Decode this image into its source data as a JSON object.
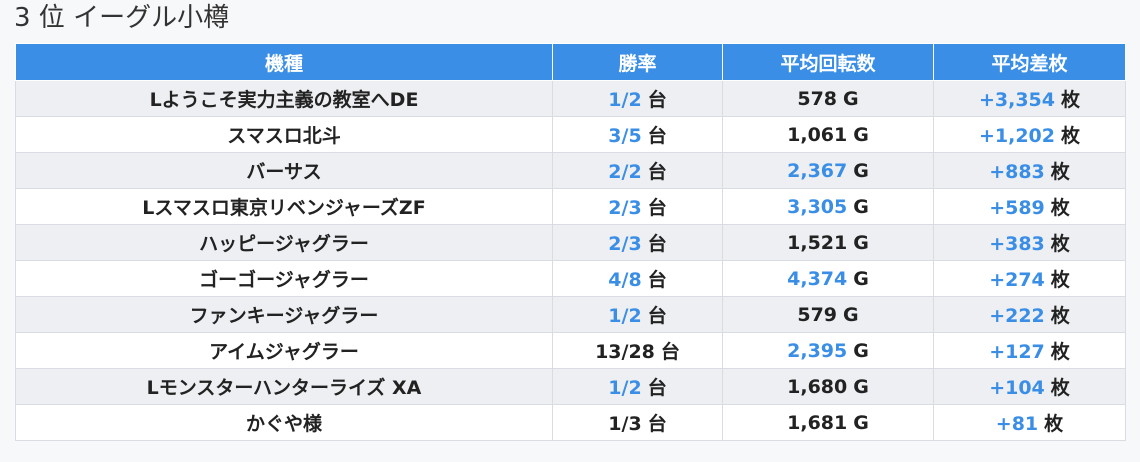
{
  "title": "3 位 イーグル小樽",
  "table": {
    "headers": [
      "機種",
      "勝率",
      "平均回転数",
      "平均差枚"
    ],
    "units": {
      "rate": "台",
      "spins": "G",
      "diff": "枚"
    },
    "rows": [
      {
        "name": "Lようこそ実力主義の教室へDE",
        "rate": "1/2",
        "rate_hl": true,
        "spins": "578",
        "spins_hl": false,
        "diff": "+3,354",
        "diff_hl": true
      },
      {
        "name": "スマスロ北斗",
        "rate": "3/5",
        "rate_hl": true,
        "spins": "1,061",
        "spins_hl": false,
        "diff": "+1,202",
        "diff_hl": true
      },
      {
        "name": "バーサス",
        "rate": "2/2",
        "rate_hl": true,
        "spins": "2,367",
        "spins_hl": true,
        "diff": "+883",
        "diff_hl": true
      },
      {
        "name": "Lスマスロ東京リベンジャーズZF",
        "rate": "2/3",
        "rate_hl": true,
        "spins": "3,305",
        "spins_hl": true,
        "diff": "+589",
        "diff_hl": true
      },
      {
        "name": "ハッピージャグラー",
        "rate": "2/3",
        "rate_hl": true,
        "spins": "1,521",
        "spins_hl": false,
        "diff": "+383",
        "diff_hl": true
      },
      {
        "name": "ゴーゴージャグラー",
        "rate": "4/8",
        "rate_hl": true,
        "spins": "4,374",
        "spins_hl": true,
        "diff": "+274",
        "diff_hl": true
      },
      {
        "name": "ファンキージャグラー",
        "rate": "1/2",
        "rate_hl": true,
        "spins": "579",
        "spins_hl": false,
        "diff": "+222",
        "diff_hl": true
      },
      {
        "name": "アイムジャグラー",
        "rate": "13/28",
        "rate_hl": false,
        "spins": "2,395",
        "spins_hl": true,
        "diff": "+127",
        "diff_hl": true
      },
      {
        "name": "Lモンスターハンターライズ XA",
        "rate": "1/2",
        "rate_hl": true,
        "spins": "1,680",
        "spins_hl": false,
        "diff": "+104",
        "diff_hl": true
      },
      {
        "name": "かぐや様",
        "rate": "1/3",
        "rate_hl": false,
        "spins": "1,681",
        "spins_hl": false,
        "diff": "+81",
        "diff_hl": true
      }
    ]
  }
}
